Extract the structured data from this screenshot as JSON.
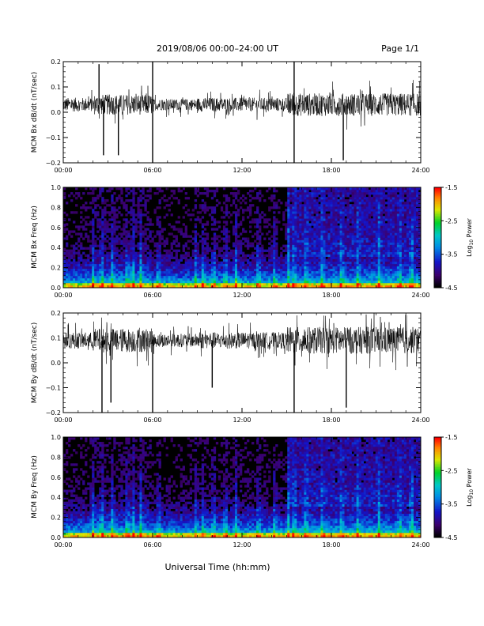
{
  "header": {
    "title": "2019/08/06  00:00–24:00 UT",
    "page": "Page 1/1"
  },
  "xlabel": "Universal Time (hh:mm)",
  "x_ticks": [
    "00:00",
    "06:00",
    "12:00",
    "18:00",
    "24:00"
  ],
  "colorbar": {
    "label_prefix": "Log",
    "label_sub": "10",
    "label_suffix": " Power",
    "ticks": [
      "-1.5",
      "-2.5",
      "-3.5",
      "-4.5"
    ],
    "range": [
      -4.5,
      -1.5
    ]
  },
  "chart_data": [
    {
      "type": "line",
      "name": "bx-time-series",
      "ylabel": "MCM Bx dB/dt (nT/sec)",
      "ylim": [
        -0.2,
        0.2
      ],
      "y_ticks": [
        "0.2",
        "0.1",
        "0.0",
        "−0.1",
        "−0.2"
      ],
      "xlim_hours": [
        0,
        24
      ],
      "baseline": 0.03,
      "noise_amplitude": 0.05,
      "spikes": [
        {
          "hour": 6.0,
          "value": -0.2
        },
        {
          "hour": 6.0,
          "value": 0.2
        },
        {
          "hour": 15.5,
          "value": -0.2
        },
        {
          "hour": 15.5,
          "value": 0.2
        },
        {
          "hour": 2.7,
          "value": -0.17
        },
        {
          "hour": 3.7,
          "value": -0.17
        },
        {
          "hour": 18.8,
          "value": -0.19
        },
        {
          "hour": 2.4,
          "value": 0.19
        }
      ]
    },
    {
      "type": "heatmap",
      "name": "bx-spectrogram",
      "ylabel": "MCM Bx Freq (Hz)",
      "ylim": [
        0.0,
        1.0
      ],
      "y_ticks": [
        "1.0",
        "0.8",
        "0.6",
        "0.4",
        "0.2",
        "0.0"
      ],
      "xlim_hours": [
        0,
        24
      ],
      "zlim": [
        -4.5,
        -1.5
      ]
    },
    {
      "type": "line",
      "name": "by-time-series",
      "ylabel": "MCM By dB/dt (nT/sec)",
      "ylim": [
        -0.2,
        0.2
      ],
      "y_ticks": [
        "0.2",
        "0.1",
        "0.0",
        "−0.1",
        "−0.2"
      ],
      "xlim_hours": [
        0,
        24
      ],
      "baseline": 0.09,
      "noise_amplitude": 0.06,
      "spikes": [
        {
          "hour": 6.0,
          "value": -0.2
        },
        {
          "hour": 15.5,
          "value": -0.2
        },
        {
          "hour": 2.6,
          "value": -0.2
        },
        {
          "hour": 3.2,
          "value": -0.16
        },
        {
          "hour": 19.0,
          "value": -0.18
        },
        {
          "hour": 10.0,
          "value": -0.1
        }
      ]
    },
    {
      "type": "heatmap",
      "name": "by-spectrogram",
      "ylabel": "MCM By Freq (Hz)",
      "ylim": [
        0.0,
        1.0
      ],
      "y_ticks": [
        "1.0",
        "0.8",
        "0.6",
        "0.4",
        "0.2",
        "0.0"
      ],
      "xlim_hours": [
        0,
        24
      ],
      "zlim": [
        -4.5,
        -1.5
      ]
    }
  ]
}
